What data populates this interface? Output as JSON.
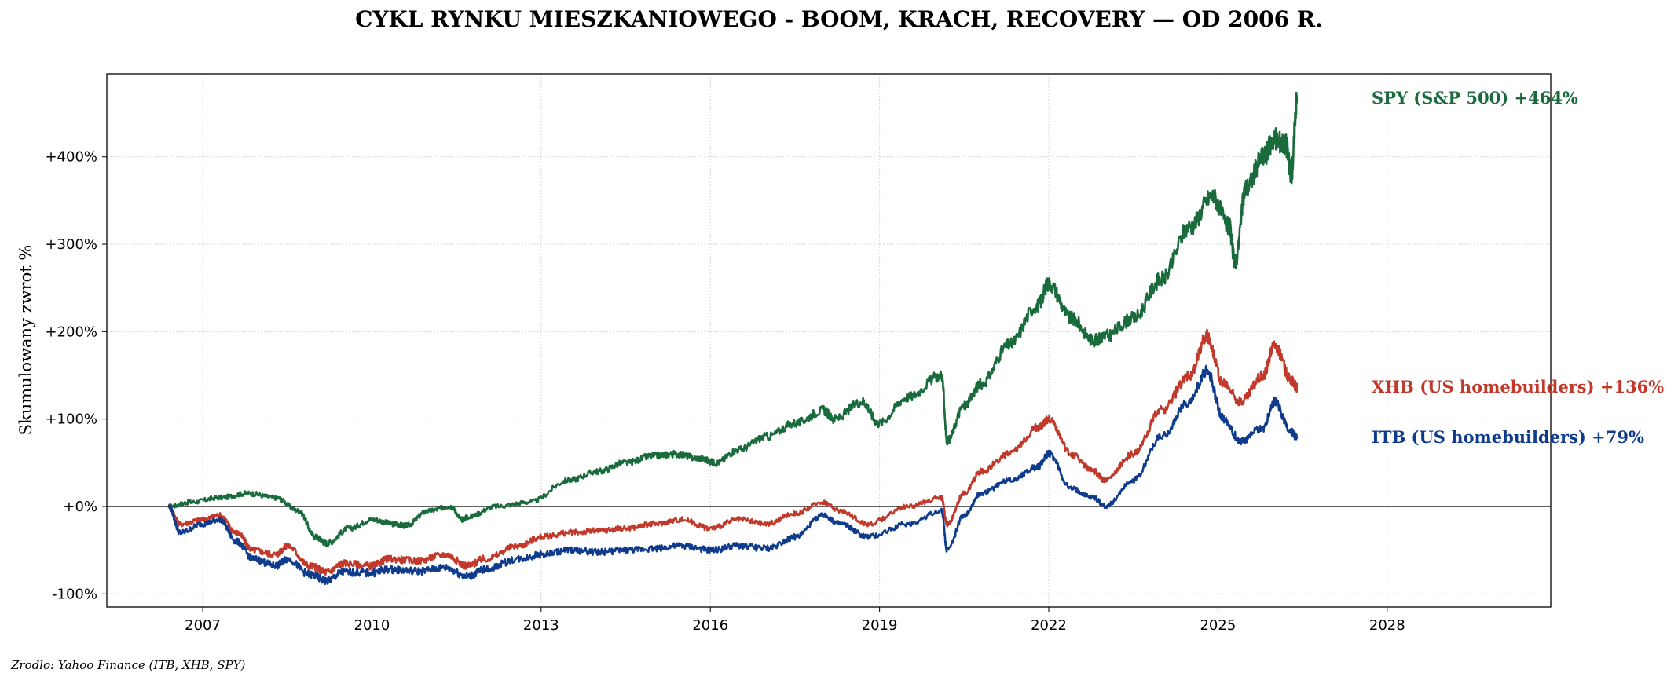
{
  "chart_data": {
    "type": "line",
    "title": "CYKL RYNKU MIESZKANIOWEGO - BOOM, KRACH, RECOVERY — OD 2006 R.",
    "ylabel": "Skumulowany zwrot %",
    "xlabel": "",
    "source": "Zrodlo: Yahoo Finance (ITB, XHB, SPY)",
    "x_ticks": [
      "2007",
      "2010",
      "2013",
      "2016",
      "2019",
      "2022",
      "2025",
      "2028"
    ],
    "x_tick_values": [
      2007,
      2010,
      2013,
      2016,
      2019,
      2022,
      2025,
      2028
    ],
    "y_ticks": [
      "-100%",
      "+0%",
      "+100%",
      "+200%",
      "+300%",
      "+400%"
    ],
    "y_tick_values": [
      -100,
      0,
      100,
      200,
      300,
      400
    ],
    "xlim": [
      2005.3,
      2030.9
    ],
    "ylim": [
      -115,
      495
    ],
    "grid": true,
    "zero_line": true,
    "series": [
      {
        "name": "SPY (S&P 500)",
        "end_label": "SPY (S&P 500)  +464%",
        "color": "#1a6b3c",
        "x": [
          2006.4,
          2006.8,
          2007.3,
          2007.8,
          2008.3,
          2008.7,
          2009.0,
          2009.2,
          2009.6,
          2010.0,
          2010.4,
          2010.6,
          2011.0,
          2011.4,
          2011.6,
          2011.7,
          2012.2,
          2012.8,
          2013.5,
          2014.0,
          2014.5,
          2015.0,
          2015.4,
          2015.8,
          2016.1,
          2016.5,
          2017.0,
          2017.5,
          2018.0,
          2018.2,
          2018.7,
          2018.98,
          2019.5,
          2020.1,
          2020.2,
          2020.5,
          2020.8,
          2021.3,
          2021.8,
          2022.0,
          2022.4,
          2022.8,
          2023.0,
          2023.5,
          2024.0,
          2024.5,
          2024.9,
          2025.2,
          2025.3,
          2025.5,
          2025.8,
          2026.0,
          2026.2,
          2026.3,
          2026.4
        ],
        "values": [
          0,
          5,
          10,
          15,
          10,
          -5,
          -35,
          -42,
          -25,
          -15,
          -20,
          -22,
          -5,
          0,
          -15,
          -12,
          0,
          5,
          30,
          40,
          50,
          58,
          60,
          55,
          50,
          65,
          80,
          95,
          110,
          100,
          120,
          95,
          125,
          150,
          75,
          115,
          140,
          185,
          230,
          255,
          215,
          190,
          195,
          215,
          260,
          320,
          355,
          320,
          280,
          365,
          400,
          420,
          415,
          380,
          464
        ]
      },
      {
        "name": "XHB (US homebuilders)",
        "end_label": "XHB (US homebuilders)  +136%",
        "color": "#c0392b",
        "x": [
          2006.4,
          2006.6,
          2007.0,
          2007.3,
          2007.6,
          2007.9,
          2008.3,
          2008.5,
          2008.9,
          2009.2,
          2009.5,
          2010.0,
          2010.3,
          2010.8,
          2011.3,
          2011.7,
          2012.0,
          2012.6,
          2013.0,
          2013.5,
          2014.0,
          2014.5,
          2015.0,
          2015.5,
          2016.0,
          2016.5,
          2017.0,
          2017.5,
          2018.0,
          2018.3,
          2018.8,
          2019.5,
          2020.1,
          2020.2,
          2020.5,
          2020.8,
          2021.3,
          2021.8,
          2022.0,
          2022.4,
          2022.8,
          2023.0,
          2023.5,
          2024.0,
          2024.5,
          2024.8,
          2025.1,
          2025.4,
          2025.8,
          2026.0,
          2026.3,
          2026.4
        ],
        "values": [
          0,
          -20,
          -15,
          -10,
          -30,
          -50,
          -55,
          -45,
          -68,
          -75,
          -65,
          -68,
          -60,
          -62,
          -55,
          -68,
          -60,
          -45,
          -35,
          -30,
          -28,
          -25,
          -20,
          -15,
          -25,
          -15,
          -20,
          -8,
          5,
          -5,
          -20,
          0,
          10,
          -20,
          15,
          40,
          60,
          90,
          100,
          60,
          40,
          30,
          60,
          110,
          150,
          195,
          140,
          120,
          150,
          185,
          145,
          136
        ]
      },
      {
        "name": "ITB (US homebuilders)",
        "end_label": "ITB (US homebuilders)  +79%",
        "color": "#0f3b8c",
        "x": [
          2006.4,
          2006.6,
          2007.0,
          2007.3,
          2007.6,
          2007.9,
          2008.3,
          2008.5,
          2008.9,
          2009.2,
          2009.5,
          2010.0,
          2010.3,
          2010.8,
          2011.3,
          2011.7,
          2012.0,
          2012.6,
          2013.0,
          2013.5,
          2014.0,
          2014.5,
          2015.0,
          2015.5,
          2016.0,
          2016.5,
          2017.0,
          2017.5,
          2018.0,
          2018.3,
          2018.8,
          2019.5,
          2020.1,
          2020.2,
          2020.5,
          2020.8,
          2021.3,
          2021.8,
          2022.0,
          2022.4,
          2022.8,
          2023.0,
          2023.5,
          2024.0,
          2024.5,
          2024.8,
          2025.1,
          2025.4,
          2025.8,
          2026.0,
          2026.3,
          2026.4
        ],
        "values": [
          0,
          -30,
          -20,
          -15,
          -40,
          -60,
          -68,
          -60,
          -78,
          -85,
          -75,
          -76,
          -72,
          -74,
          -70,
          -80,
          -72,
          -60,
          -55,
          -50,
          -52,
          -50,
          -48,
          -45,
          -50,
          -45,
          -48,
          -35,
          -10,
          -20,
          -35,
          -20,
          -5,
          -50,
          -10,
          15,
          30,
          45,
          60,
          20,
          10,
          0,
          30,
          80,
          120,
          155,
          100,
          75,
          90,
          120,
          85,
          79
        ]
      }
    ]
  }
}
